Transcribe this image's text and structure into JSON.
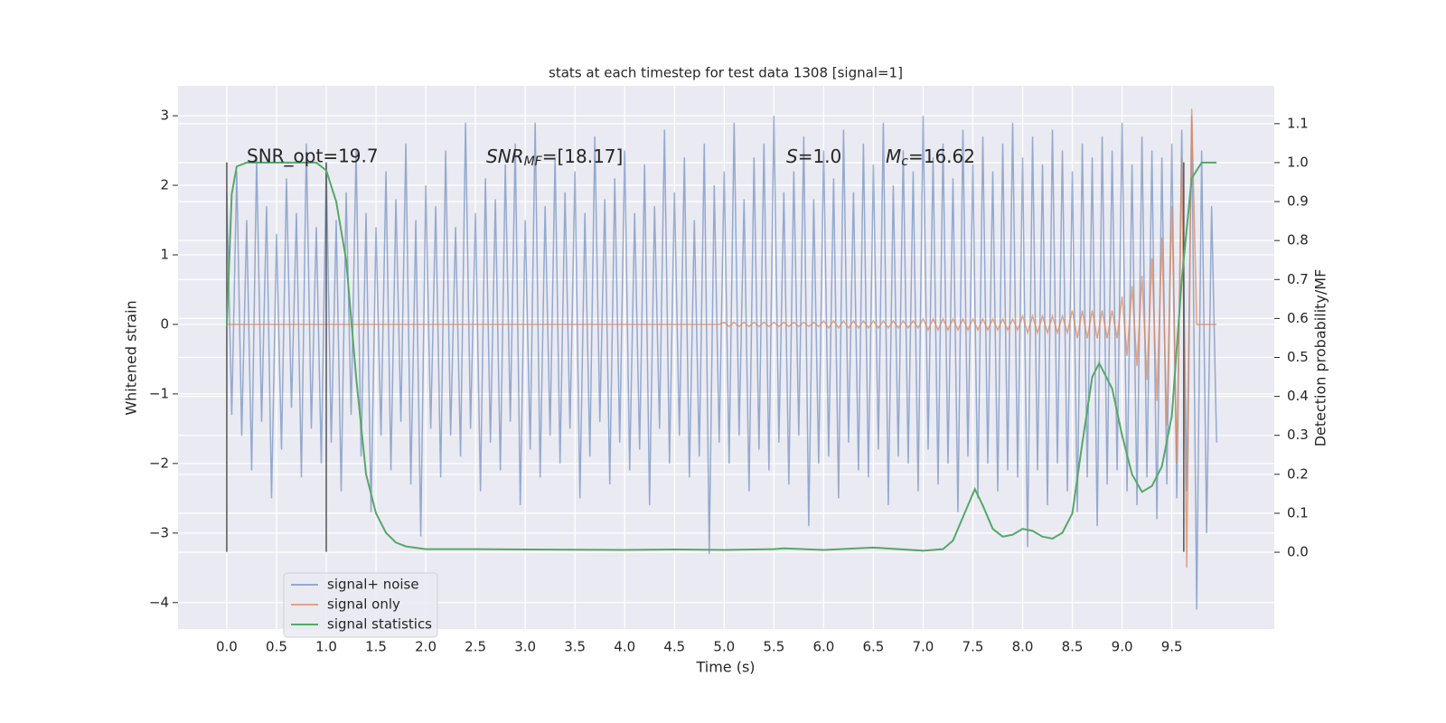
{
  "chart_data": {
    "type": "line",
    "title": "stats at each timestep for test data 1308 [signal=1]",
    "x_label": "Time (s)",
    "y_label": "Whitened strain",
    "y2_label": "Detection probability/MF",
    "xlim": [
      -0.49,
      10.53
    ],
    "ylim": [
      -4.38,
      3.43
    ],
    "y2lim": [
      -0.197,
      1.197
    ],
    "xticks": [
      {
        "value": 0,
        "label": "0.0"
      },
      0.5,
      {
        "value": 1,
        "label": "1.0"
      },
      1.5,
      {
        "value": 2,
        "label": "2.0"
      },
      2.5,
      {
        "value": 3,
        "label": "3.0"
      },
      3.5,
      {
        "value": 4,
        "label": "4.0"
      },
      4.5,
      {
        "value": 5,
        "label": "5.0"
      },
      5.5,
      {
        "value": 6,
        "label": "6.0"
      },
      6.5,
      {
        "value": 7,
        "label": "7.0"
      },
      7.5,
      {
        "value": 8,
        "label": "8.0"
      },
      8.5,
      {
        "value": 9,
        "label": "9.0"
      },
      9.5
    ],
    "yticks": [
      {
        "value": -4,
        "label": "−4"
      },
      {
        "value": -3,
        "label": "−3"
      },
      {
        "value": -2,
        "label": "−2"
      },
      {
        "value": -1,
        "label": "−1"
      },
      0,
      1,
      2,
      3
    ],
    "y2ticks": [
      {
        "value": 0,
        "label": "0.0"
      },
      0.1,
      0.2,
      0.3,
      0.4,
      0.5,
      0.6,
      0.7,
      0.8,
      0.9,
      {
        "value": 1,
        "label": "1.0"
      },
      1.1
    ],
    "grid": true,
    "legend": "lower left",
    "annotations": [
      {
        "text": "SNR_opt=19.7"
      },
      {
        "math": "SNR",
        "sub": "MF",
        "text": "=[18.17]"
      },
      {
        "math": "S",
        "text": "=1.0"
      },
      {
        "math": "M",
        "sub": "c",
        "text": "=16.62"
      }
    ],
    "vlines": [
      {
        "x": 0,
        "ymin": -3.27,
        "ymax": 2.33
      },
      {
        "x": 1.0,
        "ymin": -3.27,
        "ymax": 2.33
      },
      {
        "x": 9.62,
        "ymin": -3.27,
        "ymax": 2.33
      }
    ],
    "series": [
      {
        "name": "signal+ noise",
        "color": "#4c72b0",
        "opacity": 0.55,
        "x": [
          0,
          0.05,
          0.1,
          0.15,
          0.2,
          0.25,
          0.3,
          0.35,
          0.4,
          0.45,
          0.5,
          0.55,
          0.6,
          0.65,
          0.7,
          0.75,
          0.8,
          0.85,
          0.9,
          0.95,
          1,
          1.05,
          1.1,
          1.15,
          1.2,
          1.25,
          1.3,
          1.35,
          1.4,
          1.45,
          1.5,
          1.55,
          1.6,
          1.65,
          1.7,
          1.75,
          1.8,
          1.85,
          1.9,
          1.95,
          2,
          2.05,
          2.1,
          2.15,
          2.2,
          2.25,
          2.3,
          2.35,
          2.4,
          2.45,
          2.5,
          2.55,
          2.6,
          2.65,
          2.7,
          2.75,
          2.8,
          2.85,
          2.9,
          2.95,
          3,
          3.05,
          3.1,
          3.15,
          3.2,
          3.25,
          3.3,
          3.35,
          3.4,
          3.45,
          3.5,
          3.55,
          3.6,
          3.65,
          3.7,
          3.75,
          3.8,
          3.85,
          3.9,
          3.95,
          4,
          4.05,
          4.1,
          4.15,
          4.2,
          4.25,
          4.3,
          4.35,
          4.4,
          4.45,
          4.5,
          4.55,
          4.6,
          4.65,
          4.7,
          4.75,
          4.8,
          4.85,
          4.9,
          4.95,
          5,
          5.05,
          5.1,
          5.15,
          5.2,
          5.25,
          5.3,
          5.35,
          5.4,
          5.45,
          5.5,
          5.55,
          5.6,
          5.65,
          5.7,
          5.75,
          5.8,
          5.85,
          5.9,
          5.95,
          6,
          6.05,
          6.1,
          6.15,
          6.2,
          6.25,
          6.3,
          6.35,
          6.4,
          6.45,
          6.5,
          6.55,
          6.6,
          6.65,
          6.7,
          6.75,
          6.8,
          6.85,
          6.9,
          6.95,
          7,
          7.05,
          7.1,
          7.15,
          7.2,
          7.25,
          7.3,
          7.35,
          7.4,
          7.45,
          7.5,
          7.55,
          7.6,
          7.65,
          7.7,
          7.75,
          7.8,
          7.85,
          7.9,
          7.95,
          8,
          8.05,
          8.1,
          8.15,
          8.2,
          8.25,
          8.3,
          8.35,
          8.4,
          8.45,
          8.5,
          8.55,
          8.6,
          8.65,
          8.7,
          8.75,
          8.8,
          8.85,
          8.9,
          8.95,
          9,
          9.05,
          9.1,
          9.15,
          9.2,
          9.25,
          9.3,
          9.35,
          9.4,
          9.45,
          9.5,
          9.55,
          9.6,
          9.65,
          9.7,
          9.75,
          9.8,
          9.85,
          9.9,
          9.95
        ],
        "values": [
          1.9,
          -1.3,
          2.2,
          -1.6,
          1.5,
          -2.1,
          2.4,
          -1.4,
          1.7,
          -2.5,
          1.3,
          -1.8,
          2.1,
          -1.2,
          1.6,
          -2.2,
          2.6,
          -1.5,
          1.4,
          -2.0,
          2.3,
          -1.7,
          1.5,
          -2.4,
          1.9,
          -1.3,
          2.5,
          -1.9,
          1.6,
          -2.7,
          1.4,
          -1.6,
          2.2,
          -2.1,
          1.8,
          -1.4,
          2.6,
          -2.3,
          1.5,
          -3.05,
          2.0,
          -1.5,
          1.7,
          -2.2,
          2.5,
          -1.6,
          1.4,
          -1.9,
          2.9,
          -1.5,
          1.6,
          -2.4,
          2.1,
          -1.7,
          1.8,
          -2.1,
          2.3,
          -1.4,
          2.6,
          -2.6,
          1.5,
          -1.8,
          2.9,
          -2.2,
          1.7,
          -1.6,
          2.4,
          -2.0,
          1.9,
          -1.5,
          2.2,
          -2.5,
          1.6,
          -1.9,
          2.7,
          -1.4,
          1.8,
          -2.3,
          2.1,
          -1.7,
          2.5,
          -2.1,
          1.6,
          -1.8,
          2.3,
          -2.6,
          1.7,
          -1.5,
          2.8,
          -2.0,
          1.9,
          -1.6,
          2.4,
          -2.2,
          1.5,
          -1.9,
          2.6,
          -3.3,
          2.0,
          -1.7,
          2.2,
          -2.0,
          2.9,
          -1.6,
          1.8,
          -2.4,
          2.4,
          -1.8,
          2.6,
          -2.1,
          3.0,
          -1.7,
          1.9,
          -2.3,
          2.2,
          -1.6,
          2.7,
          -2.9,
          1.8,
          -2.0,
          2.5,
          -1.9,
          2.1,
          -2.5,
          2.8,
          -1.7,
          1.9,
          -2.1,
          2.6,
          -2.2,
          2.3,
          -1.8,
          2.9,
          -2.6,
          2.0,
          -1.9,
          2.5,
          -2.0,
          2.2,
          -2.4,
          3.0,
          -1.8,
          2.4,
          -2.3,
          2.6,
          -2.0,
          2.1,
          -2.7,
          2.8,
          -1.9,
          2.3,
          -2.5,
          2.7,
          -2.0,
          2.2,
          -2.4,
          2.6,
          -2.1,
          2.9,
          -2.2,
          2.4,
          -3.2,
          2.7,
          -2.1,
          2.3,
          -2.6,
          2.8,
          -2.0,
          2.5,
          -2.4,
          2.2,
          -2.7,
          2.6,
          -2.2,
          2.4,
          -2.9,
          2.7,
          -2.3,
          2.5,
          -2.1,
          2.9,
          -2.4,
          2.3,
          -2.6,
          2.7,
          -2.2,
          2.5,
          -2.8,
          2.4,
          -2.3,
          2.6,
          -2.5,
          2.8,
          -2.4,
          3.0,
          -4.1,
          2.5,
          -3.0,
          1.7,
          -1.7
        ]
      },
      {
        "name": "signal only",
        "color": "#dd8452",
        "opacity": 0.7,
        "x": [
          0,
          0.05,
          0.1,
          0.15,
          0.2,
          0.25,
          0.3,
          0.35,
          0.4,
          0.45,
          0.5,
          0.55,
          0.6,
          0.65,
          0.7,
          0.75,
          0.8,
          0.85,
          0.9,
          0.95,
          1,
          1.05,
          1.1,
          1.15,
          1.2,
          1.25,
          1.3,
          1.35,
          1.4,
          1.45,
          1.5,
          1.55,
          1.6,
          1.65,
          1.7,
          1.75,
          1.8,
          1.85,
          1.9,
          1.95,
          2,
          2.05,
          2.1,
          2.15,
          2.2,
          2.25,
          2.3,
          2.35,
          2.4,
          2.45,
          2.5,
          2.55,
          2.6,
          2.65,
          2.7,
          2.75,
          2.8,
          2.85,
          2.9,
          2.95,
          3,
          3.05,
          3.1,
          3.15,
          3.2,
          3.25,
          3.3,
          3.35,
          3.4,
          3.45,
          3.5,
          3.55,
          3.6,
          3.65,
          3.7,
          3.75,
          3.8,
          3.85,
          3.9,
          3.95,
          4,
          4.05,
          4.1,
          4.15,
          4.2,
          4.25,
          4.3,
          4.35,
          4.4,
          4.45,
          4.5,
          4.55,
          4.6,
          4.65,
          4.7,
          4.75,
          4.8,
          4.85,
          4.9,
          4.95,
          5,
          5.05,
          5.1,
          5.15,
          5.2,
          5.25,
          5.3,
          5.35,
          5.4,
          5.45,
          5.5,
          5.55,
          5.6,
          5.65,
          5.7,
          5.75,
          5.8,
          5.85,
          5.9,
          5.95,
          6,
          6.05,
          6.1,
          6.15,
          6.2,
          6.25,
          6.3,
          6.35,
          6.4,
          6.45,
          6.5,
          6.55,
          6.6,
          6.65,
          6.7,
          6.75,
          6.8,
          6.85,
          6.9,
          6.95,
          7,
          7.05,
          7.1,
          7.15,
          7.2,
          7.25,
          7.3,
          7.35,
          7.4,
          7.45,
          7.5,
          7.55,
          7.6,
          7.65,
          7.7,
          7.75,
          7.8,
          7.85,
          7.9,
          7.95,
          8,
          8.05,
          8.1,
          8.15,
          8.2,
          8.25,
          8.3,
          8.35,
          8.4,
          8.45,
          8.5,
          8.55,
          8.6,
          8.65,
          8.7,
          8.75,
          8.8,
          8.85,
          8.9,
          8.95,
          9,
          9.05,
          9.1,
          9.15,
          9.2,
          9.25,
          9.3,
          9.35,
          9.4,
          9.45,
          9.5,
          9.55,
          9.6,
          9.65,
          9.7,
          9.75,
          9.8,
          9.85,
          9.9,
          9.95
        ],
        "values": [
          0,
          0,
          0,
          0,
          0,
          0,
          0,
          0,
          0,
          0,
          0,
          0,
          0,
          0,
          0,
          0,
          0,
          0,
          0,
          0,
          0,
          0,
          0,
          0,
          0,
          0,
          0,
          0,
          0,
          0,
          0,
          0,
          0,
          0,
          0,
          0,
          0,
          0,
          0,
          0,
          0,
          0,
          0,
          0,
          0,
          0,
          0,
          0,
          0,
          0,
          0,
          0,
          0,
          0,
          0,
          0,
          0,
          0,
          0,
          0,
          0,
          0,
          0,
          0,
          0,
          0,
          0,
          0,
          0,
          0,
          0,
          0,
          0,
          0,
          0,
          0,
          0,
          0,
          0,
          0,
          0,
          0,
          0,
          0,
          0,
          0,
          0,
          0,
          0,
          0,
          0,
          0,
          0,
          0,
          0,
          0,
          0,
          0,
          0,
          0,
          0.03,
          -0.03,
          0.03,
          -0.03,
          0.03,
          -0.03,
          0.03,
          -0.03,
          0.03,
          -0.03,
          0.03,
          -0.03,
          0.03,
          -0.03,
          0.03,
          -0.03,
          0.03,
          -0.03,
          0.03,
          -0.03,
          0.05,
          -0.05,
          0.05,
          -0.05,
          0.05,
          -0.05,
          0.05,
          -0.05,
          0.05,
          -0.05,
          0.05,
          -0.05,
          0.05,
          -0.05,
          0.05,
          -0.05,
          0.05,
          -0.05,
          0.05,
          -0.05,
          0.08,
          -0.08,
          0.08,
          -0.08,
          0.08,
          -0.08,
          0.08,
          -0.08,
          0.08,
          -0.08,
          0.08,
          -0.08,
          0.08,
          -0.08,
          0.08,
          -0.08,
          0.08,
          -0.08,
          0.08,
          -0.08,
          0.12,
          -0.12,
          0.12,
          -0.12,
          0.12,
          -0.12,
          0.12,
          -0.12,
          0.12,
          -0.12,
          0.2,
          -0.2,
          0.2,
          -0.2,
          0.2,
          -0.2,
          0.2,
          -0.2,
          0.2,
          -0.2,
          0.4,
          -0.45,
          0.55,
          -0.6,
          0.7,
          -0.8,
          0.95,
          -1.1,
          1.25,
          -1.45,
          1.7,
          -2.0,
          2.4,
          -3.5,
          3.1,
          0,
          0,
          0,
          0,
          0
        ]
      },
      {
        "name": "signal statistics",
        "color": "#55a868",
        "opacity": 1,
        "axis": "y2",
        "x": [
          0,
          0.05,
          0.1,
          0.2,
          0.5,
          0.9,
          1.0,
          1.1,
          1.2,
          1.3,
          1.4,
          1.5,
          1.6,
          1.7,
          1.8,
          2.0,
          2.5,
          3.0,
          4.0,
          4.5,
          5.0,
          5.5,
          5.6,
          6.0,
          6.5,
          7.0,
          7.2,
          7.3,
          7.4,
          7.52,
          7.6,
          7.7,
          7.8,
          7.9,
          8.0,
          8.1,
          8.2,
          8.3,
          8.4,
          8.5,
          8.6,
          8.7,
          8.77,
          8.9,
          9.0,
          9.1,
          9.2,
          9.3,
          9.4,
          9.5,
          9.6,
          9.7,
          9.8,
          9.95
        ],
        "values": [
          0.58,
          0.92,
          0.99,
          1.0,
          1.0,
          1.0,
          0.98,
          0.9,
          0.75,
          0.45,
          0.2,
          0.1,
          0.05,
          0.025,
          0.015,
          0.008,
          0.008,
          0.007,
          0.006,
          0.007,
          0.006,
          0.008,
          0.01,
          0.006,
          0.012,
          0.004,
          0.008,
          0.03,
          0.09,
          0.162,
          0.12,
          0.06,
          0.04,
          0.045,
          0.06,
          0.055,
          0.04,
          0.035,
          0.05,
          0.1,
          0.28,
          0.45,
          0.485,
          0.42,
          0.3,
          0.2,
          0.155,
          0.17,
          0.22,
          0.35,
          0.7,
          0.96,
          1.0,
          1.0
        ]
      }
    ]
  }
}
